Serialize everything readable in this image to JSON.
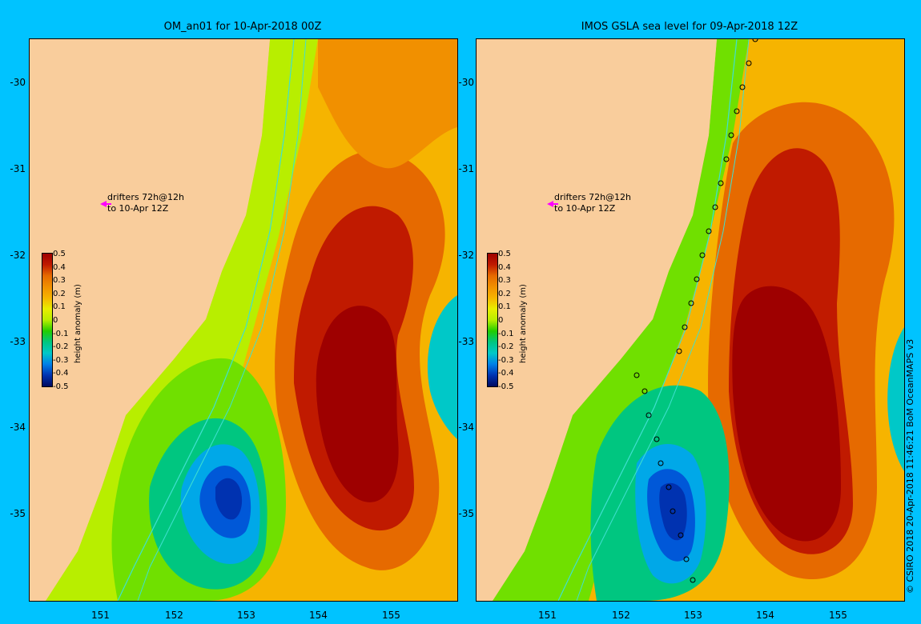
{
  "panels": [
    {
      "title": "OM_an01 for 10-Apr-2018 00Z",
      "drifter_note_line1": "drifters 72h@12h",
      "drifter_note_line2": "to 10-Apr 12Z",
      "show_markers": false
    },
    {
      "title": "IMOS GSLA sea level  for 09-Apr-2018 12Z",
      "drifter_note_line1": "drifters 72h@12h",
      "drifter_note_line2": "to 10-Apr 12Z",
      "show_markers": true
    }
  ],
  "axes": {
    "lat_ticks": [
      "-30",
      "-31",
      "-32",
      "-33",
      "-34",
      "-35"
    ],
    "lon_ticks": [
      "151",
      "152",
      "153",
      "154",
      "155"
    ]
  },
  "colorbar": {
    "label": "height anomaly (m)",
    "ticks": [
      "0.5",
      "0.4",
      "0.3",
      "0.2",
      "0.1",
      "0",
      "-0.1",
      "-0.2",
      "-0.3",
      "-0.4",
      "-0.5"
    ],
    "colors": [
      "#9e0000",
      "#c01a00",
      "#d63a00",
      "#e66a00",
      "#f19000",
      "#f6b400",
      "#f5d800",
      "#e8ee00",
      "#b8ee00",
      "#70e000",
      "#22cc00",
      "#00c400",
      "#00c680",
      "#00c8c8",
      "#00a8e8",
      "#0080e8",
      "#0058d8",
      "#0032b0",
      "#001880",
      "#000a60"
    ]
  },
  "copyright": "© CSIRO 2018   20-Apr-2018 11:46:21 BoM OceanMAPS v3",
  "colors": {
    "background": "#00c3ff",
    "land": "#f9cd9c",
    "drifter_arrow": "#ff00ff",
    "contour_line": "#40e0d0"
  }
}
